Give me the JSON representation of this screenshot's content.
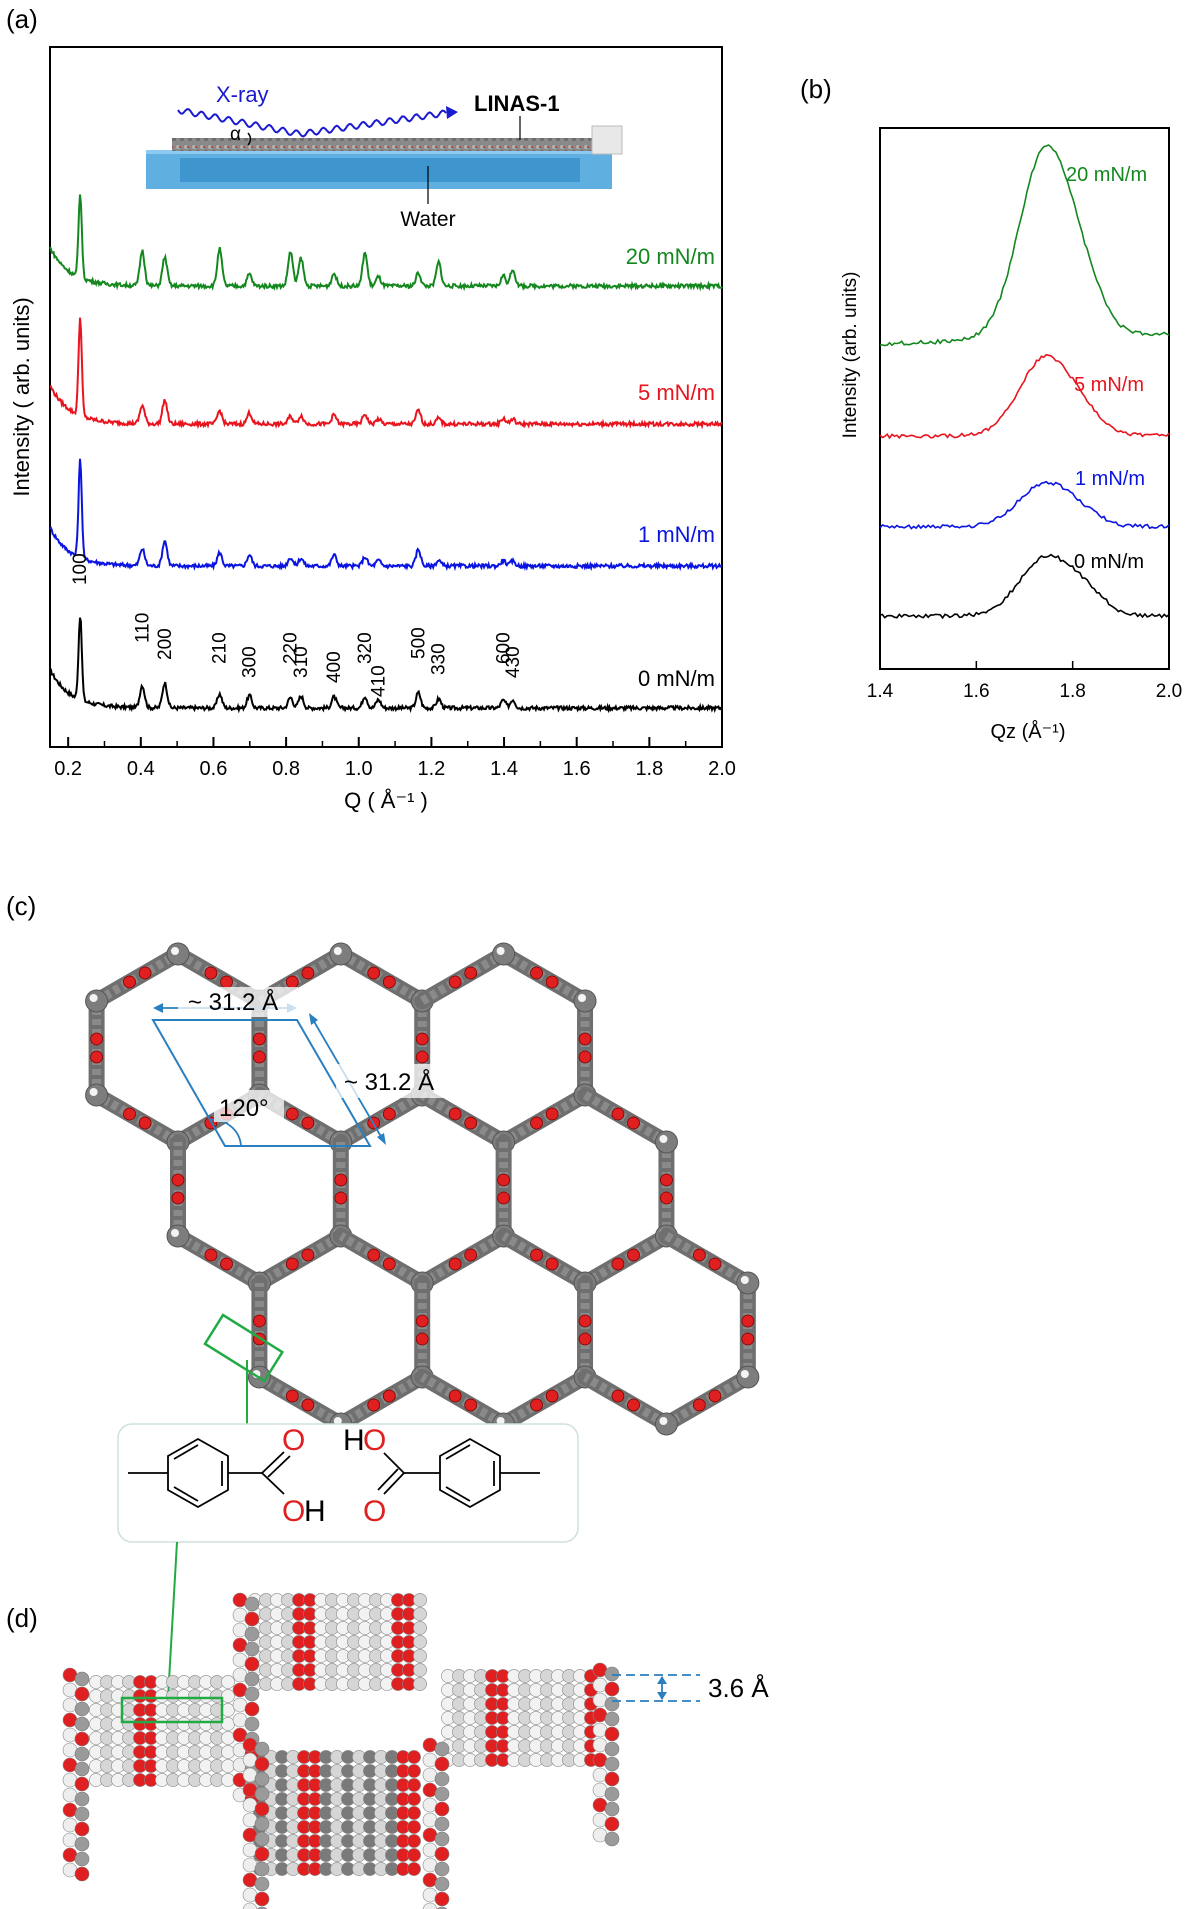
{
  "panels": {
    "a": "(a)",
    "b": "(b)",
    "c": "(c)",
    "d": "(d)"
  },
  "colors": {
    "black": "#000000",
    "blue": "#0a14e0",
    "red": "#e8141e",
    "green": "#14881e",
    "axis_blue": "#2a7fc0",
    "oxygen": "#e02020",
    "carbon": "#8a8a8a",
    "hydrogen": "#f4f4f4",
    "bond_green": "#22aa44"
  },
  "chart_data": [
    {
      "type": "line",
      "panel": "(a)",
      "xlabel": "Q ( Å⁻¹ )",
      "ylabel": "Intensity ( arb. units)",
      "xlim": [
        0.15,
        2.0
      ],
      "xticks": [
        "0.2",
        "0.4",
        "0.6",
        "0.8",
        "1.0",
        "1.2",
        "1.4",
        "1.6",
        "1.8",
        "2.0"
      ],
      "xtick_values": [
        0.2,
        0.4,
        0.6,
        0.8,
        1.0,
        1.2,
        1.4,
        1.6,
        1.8,
        2.0
      ],
      "peaks_Q": [
        0.233,
        0.404,
        0.466,
        0.617,
        0.699,
        0.812,
        0.841,
        0.932,
        1.017,
        1.054,
        1.164,
        1.22,
        1.398,
        1.424
      ],
      "series": [
        {
          "name": "0 mN/m",
          "color": "#000000",
          "heights": [
            12,
            3.2,
            3.6,
            2.0,
            1.8,
            1.5,
            1.7,
            1.6,
            1.7,
            1.2,
            2.2,
            1.3,
            1.1,
            1.2
          ]
        },
        {
          "name": "1 mN/m",
          "color": "#0a14e0",
          "heights": [
            14,
            2.4,
            3.6,
            1.9,
            1.6,
            1.2,
            1.1,
            1.6,
            1.3,
            0.8,
            2.4,
            0.8,
            0.8,
            0.7
          ]
        },
        {
          "name": "5 mN/m",
          "color": "#e8141e",
          "heights": [
            14,
            2.6,
            3.4,
            1.9,
            1.6,
            1.1,
            1.2,
            1.3,
            1.4,
            0.7,
            2.0,
            0.8,
            0.8,
            0.7
          ]
        },
        {
          "name": "20 mN/m",
          "color": "#14881e",
          "heights": [
            12,
            5.0,
            4.1,
            5.3,
            1.7,
            4.9,
            4.0,
            1.8,
            4.8,
            1.3,
            1.9,
            3.4,
            1.5,
            2.4
          ]
        }
      ],
      "peak_labels": [
        "100",
        "110",
        "200",
        "210",
        "300",
        "220",
        "310",
        "400",
        "320",
        "410",
        "500",
        "330",
        "600",
        "430"
      ],
      "inset": {
        "xray_label": "X-ray",
        "sample_label": "LINAS-1",
        "water_label": "Water",
        "angle_label": "α"
      }
    },
    {
      "type": "line",
      "panel": "(b)",
      "xlabel": "Qz (Å⁻¹)",
      "ylabel": "Intensity (arb. units)",
      "xlim": [
        1.4,
        2.0
      ],
      "xticks": [
        "1.4",
        "1.6",
        "1.8",
        "2.0"
      ],
      "xtick_values": [
        1.4,
        1.6,
        1.8,
        2.0
      ],
      "peak_center": 1.745,
      "series": [
        {
          "name": "0 mN/m",
          "color": "#000000",
          "height": 1.0
        },
        {
          "name": "1 mN/m",
          "color": "#0a14e0",
          "height": 0.7
        },
        {
          "name": "5 mN/m",
          "color": "#e8141e",
          "height": 1.1
        },
        {
          "name": "20 mN/m",
          "color": "#14881e",
          "height": 2.6
        }
      ]
    }
  ],
  "structure_c": {
    "lattice_a": "~ 31.2 Å",
    "lattice_b": "~ 31.2 Å",
    "angle": "120°",
    "chem_h1": "H",
    "chem_o1": "O",
    "chem_o2": "O",
    "chem_o3": "O",
    "chem_h2": "H",
    "chem_o4": "O"
  },
  "structure_d": {
    "spacing": "3.6 Å"
  }
}
